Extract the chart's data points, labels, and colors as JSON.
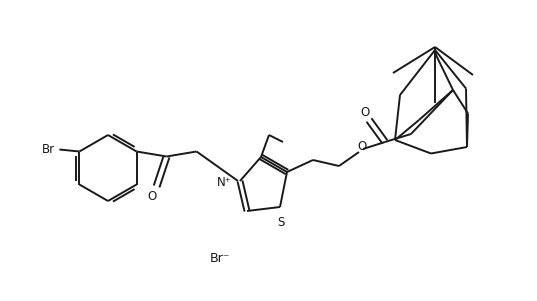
{
  "bg_color": "#ffffff",
  "line_color": "#1a1a1a",
  "line_width": 1.4,
  "figsize": [
    5.37,
    3.01
  ],
  "dpi": 100,
  "br_label": "Br",
  "br_minus": "Br⁻",
  "o_label": "O",
  "s_label": "S",
  "n_plus_label": "N⁺"
}
